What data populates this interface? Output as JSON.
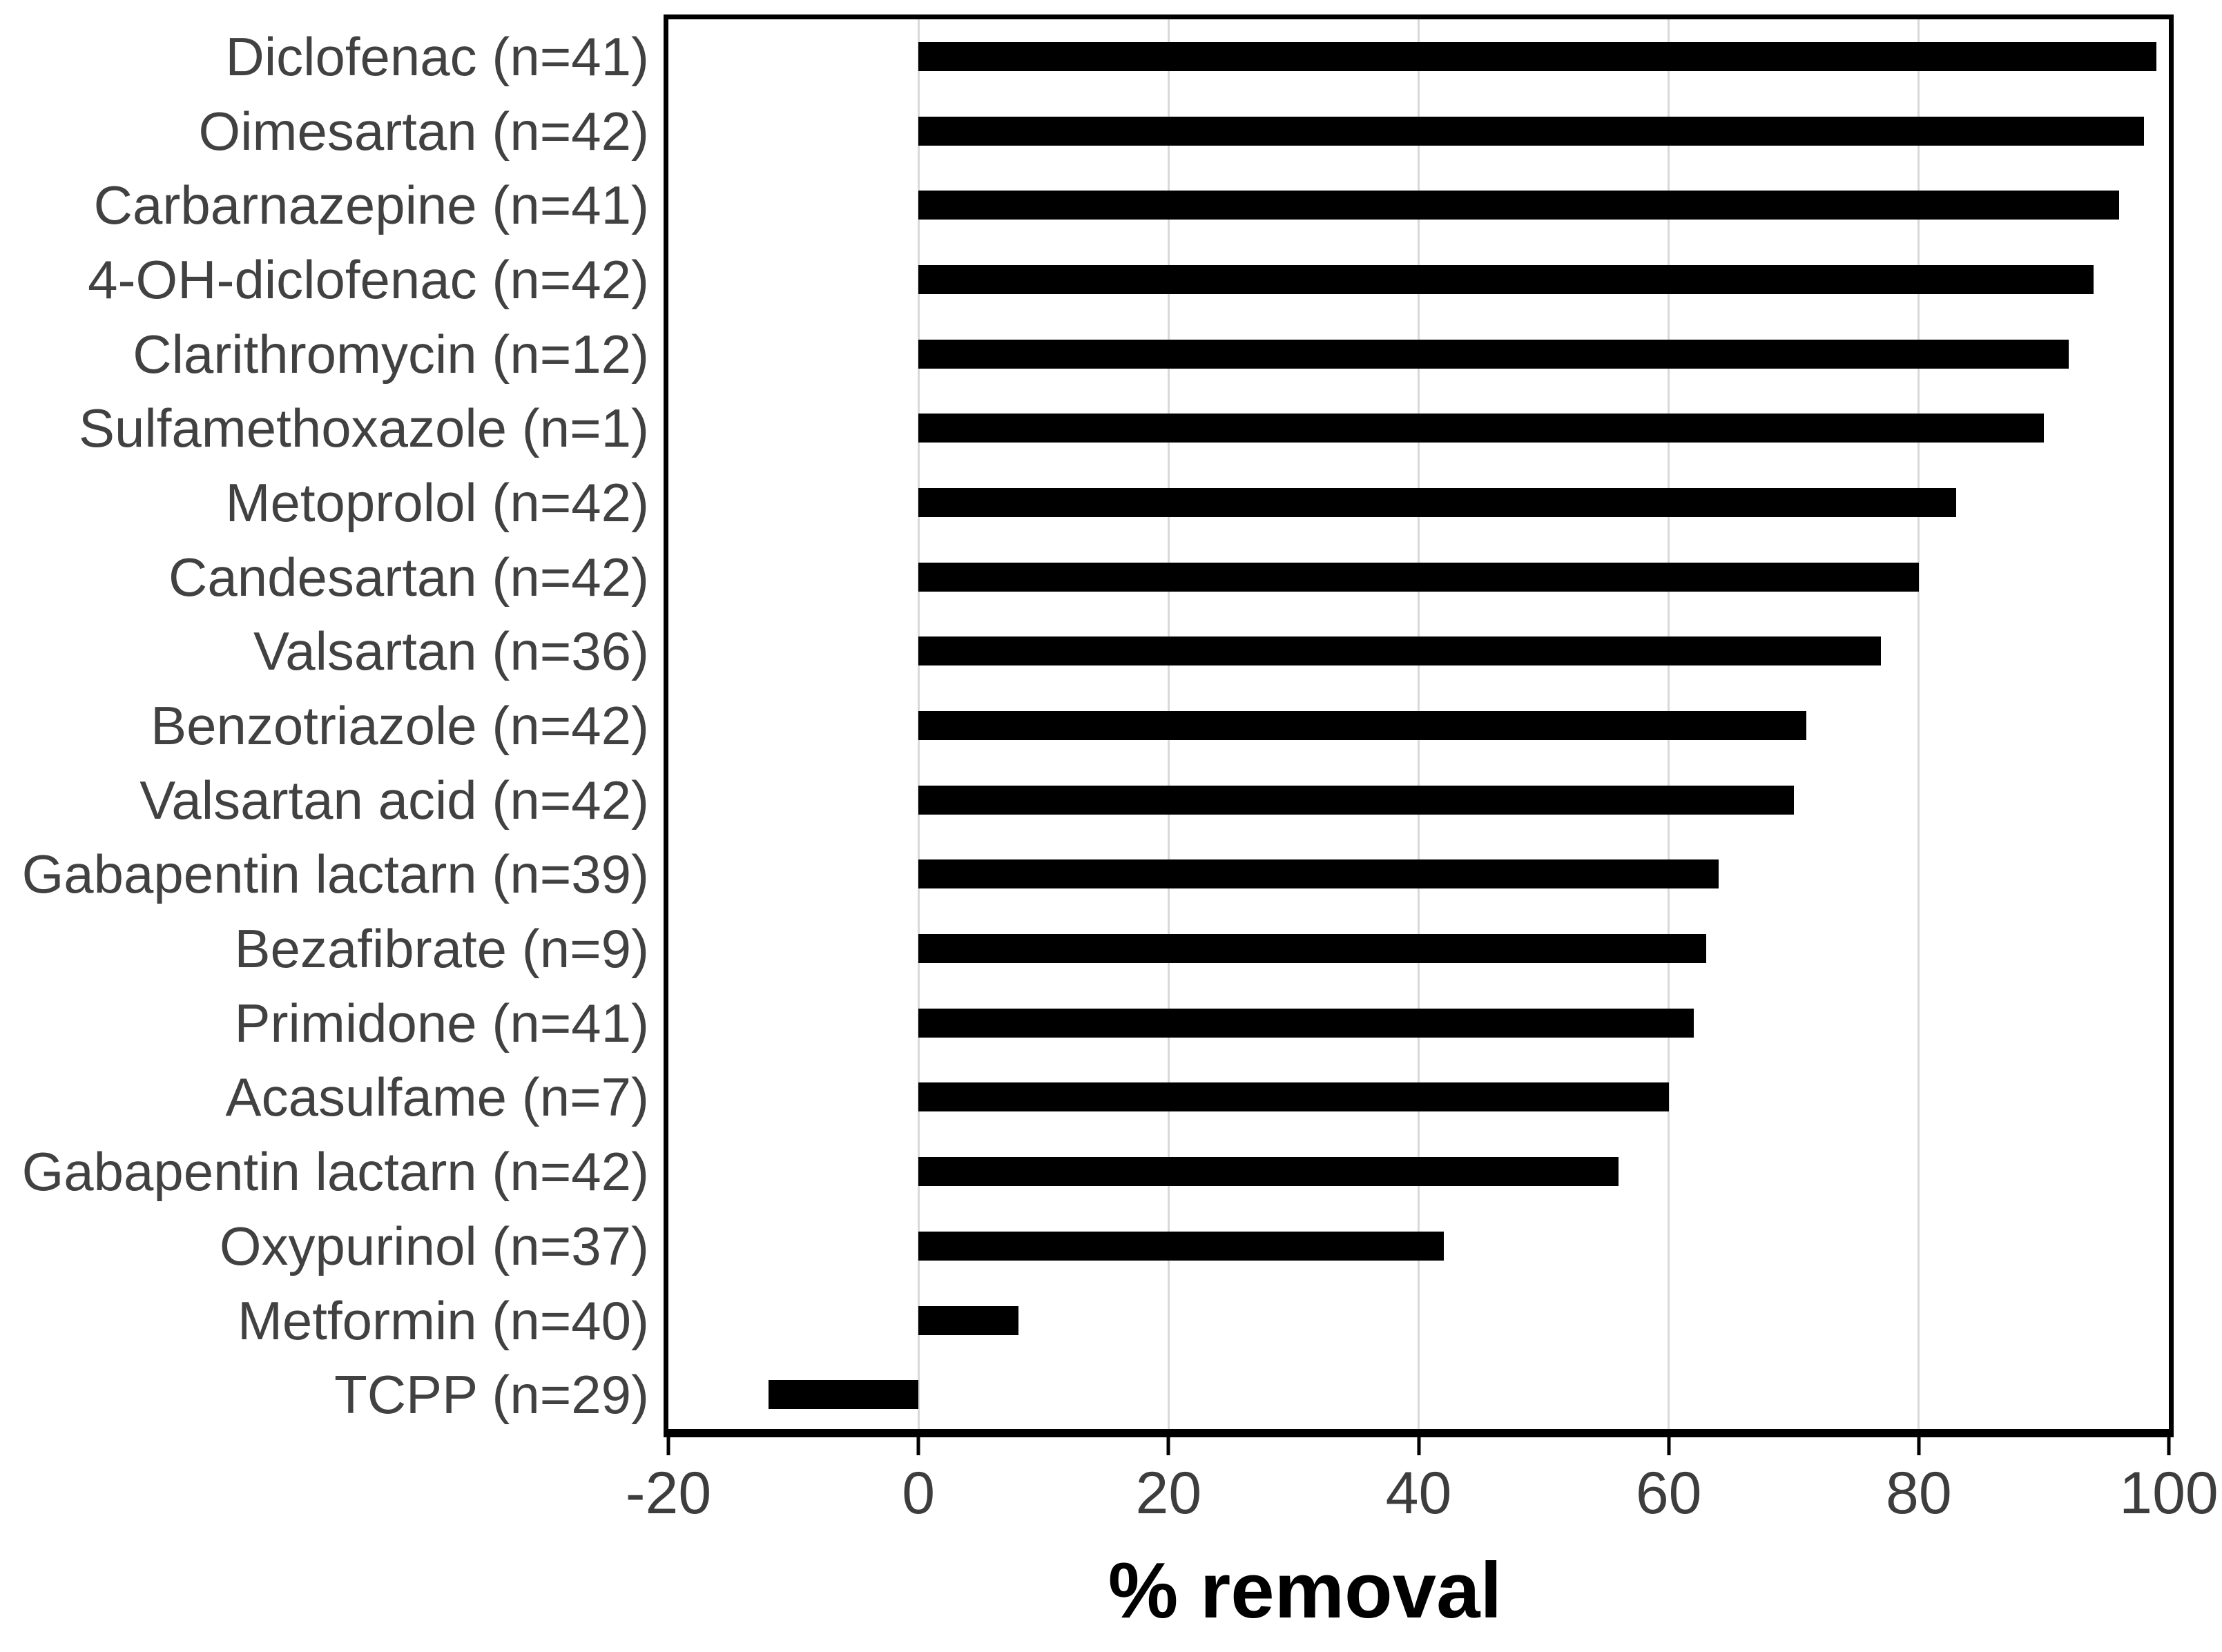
{
  "chart_data": {
    "type": "bar",
    "orientation": "horizontal",
    "title": "",
    "xlabel": "% removal",
    "ylabel": "",
    "xlim": [
      -20,
      100
    ],
    "xticks": [
      -20,
      0,
      20,
      40,
      60,
      80,
      100
    ],
    "grid": true,
    "gridline_values": [
      0,
      20,
      40,
      60,
      80
    ],
    "legend": "none",
    "bar_color": "#000000",
    "categories": [
      "Diclofenac (n=41)",
      "Oimesartan (n=42)",
      "Carbarnazepine (n=41)",
      "4-OH-diclofenac (n=42)",
      "Clarithromycin (n=12)",
      "Sulfamethoxazole (n=1)",
      "Metoprolol (n=42)",
      "Candesartan (n=42)",
      "Valsartan (n=36)",
      "Benzotriazole (n=42)",
      "Valsartan acid (n=42)",
      "Gabapentin lactarn (n=39)",
      "Bezafibrate (n=9)",
      "Primidone (n=41)",
      "Acasulfame (n=7)",
      "Gabapentin lactarn (n=42)",
      "Oxypurinol (n=37)",
      "Metformin (n=40)",
      "TCPP (n=29)"
    ],
    "values": [
      99,
      98,
      96,
      94,
      92,
      90,
      83,
      80,
      77,
      71,
      70,
      64,
      63,
      62,
      60,
      56,
      42,
      8,
      -12
    ]
  },
  "colors": {
    "bar": "#000000",
    "gridline": "#d9d9d9",
    "frame": "#000000",
    "category_text": "#414141",
    "tick_text": "#3d3d3d",
    "axis_title_text": "#000000",
    "background": "#ffffff"
  }
}
